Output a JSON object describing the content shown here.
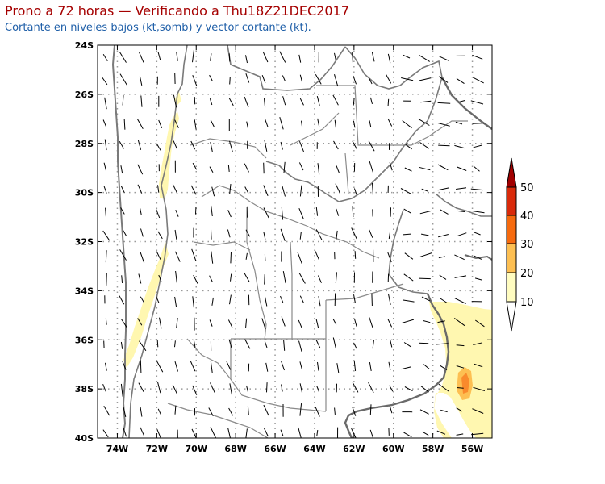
{
  "title": "Prono a 72 horas — Verificando a Thu18Z21DEC2017",
  "subtitle": "Cortante en niveles bajos (kt,somb) y vector cortante (kt).",
  "map": {
    "lon_range": [
      -75,
      -55
    ],
    "lat_range": [
      -40,
      -24
    ],
    "lon_ticks": [
      -74,
      -72,
      -70,
      -68,
      -66,
      -64,
      -62,
      -60,
      -58,
      -56
    ],
    "lon_tick_labels": [
      "74W",
      "72W",
      "70W",
      "68W",
      "66W",
      "64W",
      "62W",
      "60W",
      "58W",
      "56W"
    ],
    "lat_ticks": [
      -24,
      -26,
      -28,
      -30,
      -32,
      -34,
      -36,
      -38,
      -40
    ],
    "lat_tick_labels": [
      "24S",
      "26S",
      "28S",
      "30S",
      "32S",
      "34S",
      "36S",
      "38S",
      "40S"
    ]
  },
  "colorbar": {
    "levels": [
      "10",
      "20",
      "30",
      "40",
      "50"
    ],
    "colors": [
      "#fffcc0",
      "#fdbf52",
      "#f66a0e",
      "#d92a0a",
      "#a10000"
    ]
  }
}
